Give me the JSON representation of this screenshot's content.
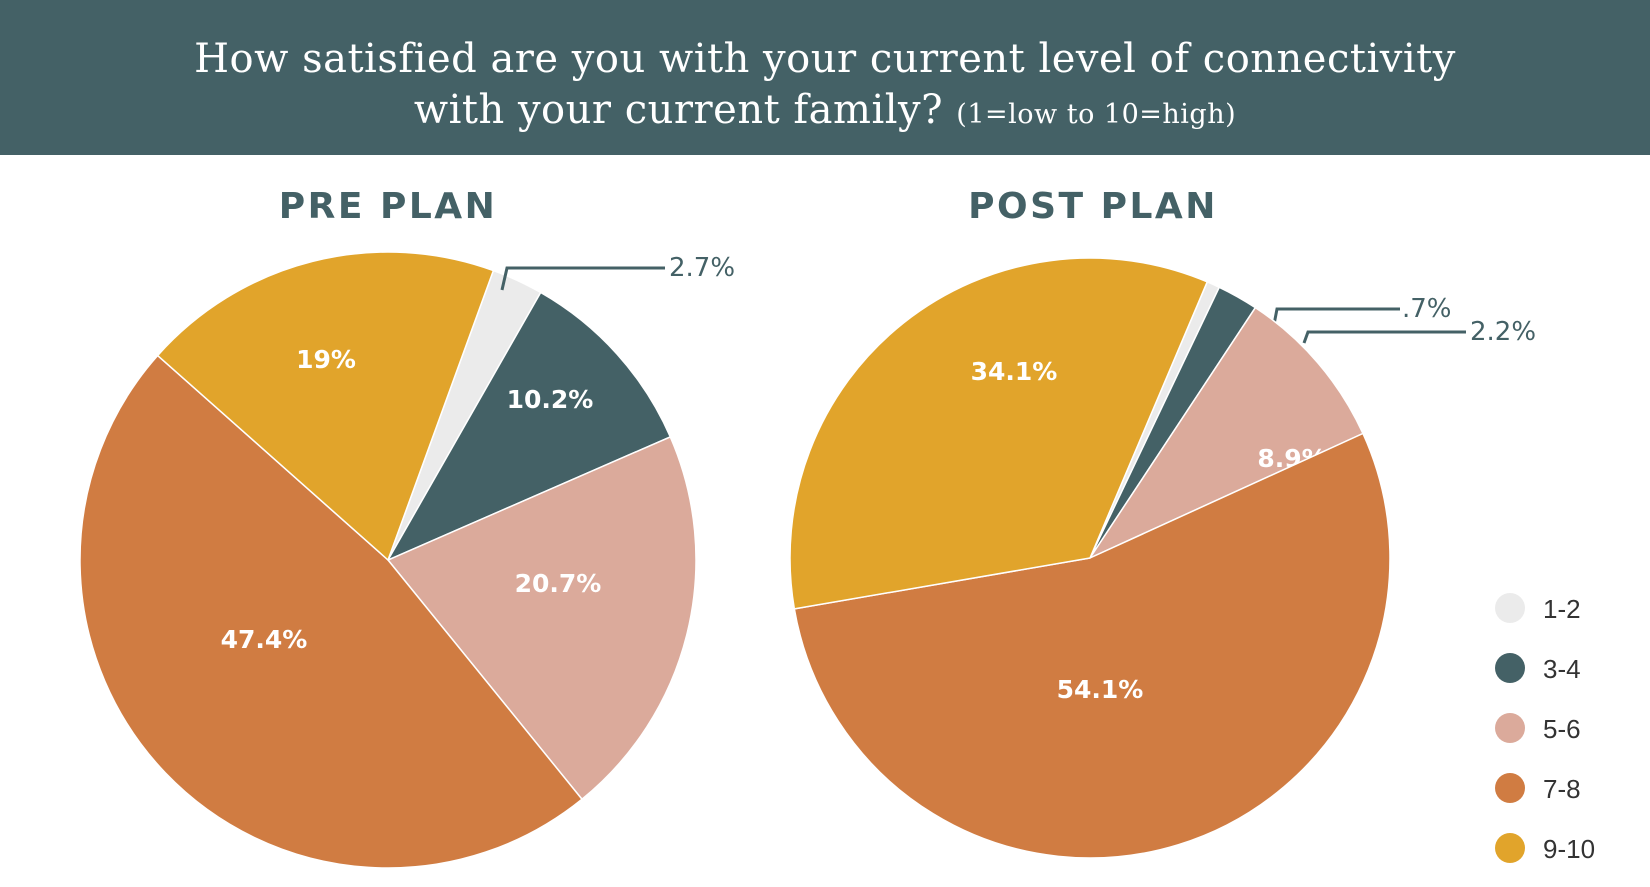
{
  "header": {
    "title_line1": "How satisfied are you with your current level of connectivity",
    "title_line2": "with your current family?",
    "scale_note": "(1=low to 10=high)",
    "background_color": "#446166"
  },
  "legend": [
    {
      "label": "1-2",
      "color": "#EBEBEB"
    },
    {
      "label": "3-4",
      "color": "#446166"
    },
    {
      "label": "5-6",
      "color": "#DBAA9B"
    },
    {
      "label": "7-8",
      "color": "#D07C42"
    },
    {
      "label": "9-10",
      "color": "#E1A42B"
    }
  ],
  "chart_data": [
    {
      "type": "pie",
      "title": "PRE PLAN",
      "categories": [
        "1-2",
        "3-4",
        "5-6",
        "7-8",
        "9-10"
      ],
      "values": [
        2.7,
        10.2,
        20.7,
        47.4,
        19
      ],
      "labels": [
        "2.7%",
        "10.2%",
        "20.7%",
        "47.4%",
        "19%"
      ]
    },
    {
      "type": "pie",
      "title": "POST PLAN",
      "categories": [
        "1-2",
        "3-4",
        "5-6",
        "7-8",
        "9-10"
      ],
      "values": [
        0.7,
        2.2,
        8.9,
        54.1,
        34.1
      ],
      "labels": [
        ".7%",
        "2.2%",
        "8.9%",
        "54.1%",
        "34.1%"
      ]
    }
  ]
}
